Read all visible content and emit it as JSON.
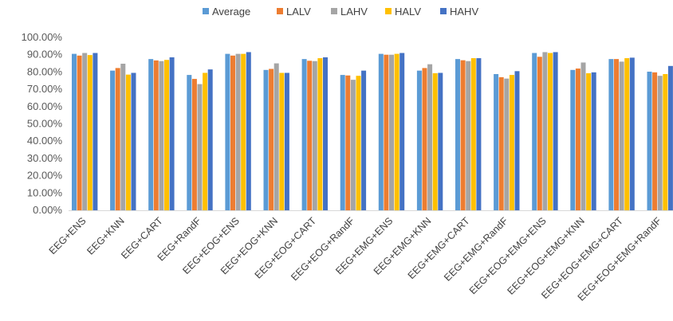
{
  "chart_data": {
    "type": "bar",
    "categories": [
      "EEG+ENS",
      "EEG+KNN",
      "EEG+CART",
      "EEG+RandF",
      "EEG+EOG+ENS",
      "EEG+EOG+KNN",
      "EEG+EOG+CART",
      "EEG+EOG+RandF",
      "EEG+EMG+ENS",
      "EEG+EMG+KNN",
      "EEG+EMG+CART",
      "EEG+EMG+RandF",
      "EEG+EOG+EMG+ENS",
      "EEG+EOG+EMG+KNN",
      "EEG+EOG+EMG+CART",
      "EEG+EOG+EMG+RandF"
    ],
    "series": [
      {
        "name": "Average",
        "color": "#5b9bd5",
        "values": [
          90.5,
          80.8,
          87.5,
          78.3,
          90.5,
          81.2,
          87.5,
          78.3,
          90.5,
          80.8,
          87.5,
          78.8,
          91.0,
          81.2,
          87.5,
          80.2
        ]
      },
      {
        "name": "LALV",
        "color": "#ed7d31",
        "values": [
          89.5,
          82.3,
          86.7,
          76.0,
          89.5,
          81.8,
          86.5,
          78.0,
          90.0,
          82.3,
          86.8,
          77.0,
          88.8,
          82.0,
          87.5,
          79.8
        ]
      },
      {
        "name": "LAHV",
        "color": "#a5a5a5",
        "values": [
          91.0,
          84.8,
          86.3,
          73.0,
          90.5,
          85.0,
          86.3,
          75.5,
          90.0,
          84.5,
          86.3,
          76.2,
          91.5,
          85.5,
          86.0,
          77.8
        ]
      },
      {
        "name": "HALV",
        "color": "#ffc000",
        "values": [
          89.8,
          78.5,
          87.0,
          79.5,
          90.5,
          79.5,
          88.0,
          77.8,
          90.5,
          79.3,
          88.0,
          78.3,
          91.0,
          79.3,
          88.0,
          78.8
        ]
      },
      {
        "name": "HAHV",
        "color": "#4472c4",
        "values": [
          91.0,
          79.5,
          88.5,
          81.5,
          91.5,
          79.5,
          88.5,
          80.8,
          91.0,
          79.5,
          88.0,
          80.5,
          91.5,
          79.8,
          88.3,
          83.5
        ]
      }
    ],
    "yticks": [
      "0.00%",
      "10.00%",
      "20.00%",
      "30.00%",
      "40.00%",
      "50.00%",
      "60.00%",
      "70.00%",
      "80.00%",
      "90.00%",
      "100.00%"
    ],
    "ylim": [
      0,
      100
    ],
    "legend_position": "top",
    "grid": false
  }
}
